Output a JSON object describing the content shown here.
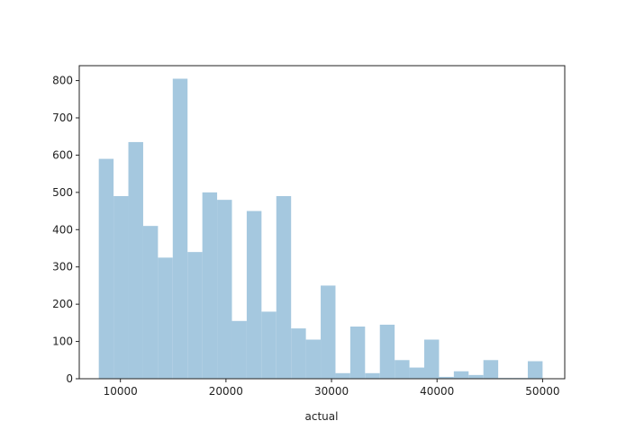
{
  "chart_data": {
    "type": "histogram",
    "xlabel": "actual",
    "bins": [
      7950,
      9352,
      10753,
      12155,
      13557,
      14958,
      16360,
      17762,
      19163,
      20565,
      21967,
      23368,
      24770,
      26172,
      27573,
      28975,
      30377,
      31778,
      33180,
      34582,
      35983,
      37385,
      38787,
      40188,
      41590,
      42992,
      44393,
      45795,
      47197,
      48598,
      50000
    ],
    "values": [
      590,
      490,
      635,
      410,
      325,
      805,
      340,
      500,
      480,
      155,
      450,
      180,
      490,
      135,
      105,
      250,
      15,
      140,
      15,
      145,
      50,
      30,
      105,
      5,
      20,
      10,
      50,
      2,
      2,
      47
    ],
    "color": "#a5c8df",
    "xlim": [
      6100,
      52100
    ],
    "ylim": [
      0,
      840
    ],
    "xticks": [
      10000,
      20000,
      30000,
      40000,
      50000
    ],
    "yticks": [
      0,
      100,
      200,
      300,
      400,
      500,
      600,
      700,
      800
    ],
    "grid": false
  }
}
